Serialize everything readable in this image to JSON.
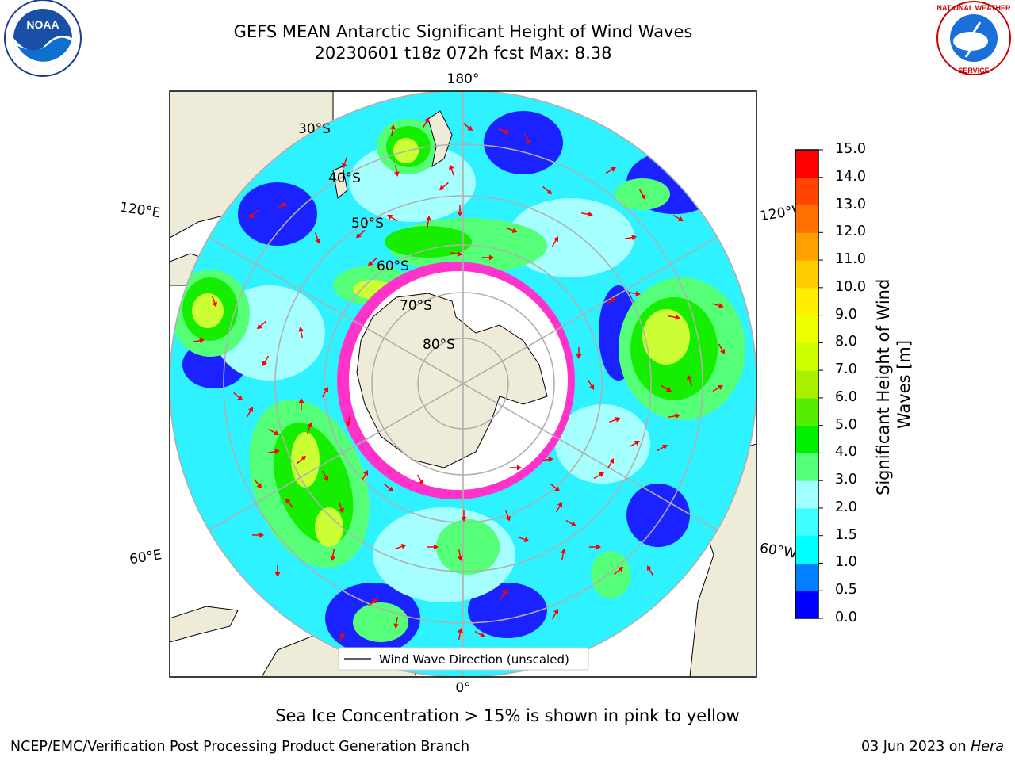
{
  "title": {
    "line1": "GEFS MEAN Antarctic Significant Height of Wind Waves",
    "line2": "20230601 t18z 072h fcst   Max: 8.38"
  },
  "logos": {
    "left": "NOAA",
    "right": "NATIONAL WEATHER SERVICE"
  },
  "map": {
    "projection": "south-polar-stereographic",
    "longitude_labels": {
      "top": "180°",
      "bottom": "0°",
      "left_upper": "120°E",
      "left_lower": "60°E",
      "right_upper": "120°W",
      "right_lower": "60°W"
    },
    "latitude_labels": [
      "30°S",
      "40°S",
      "50°S",
      "60°S",
      "70°S",
      "80°S"
    ],
    "legend": "Wind Wave Direction (unscaled)",
    "arrow_color": "#ff0000",
    "sea_ice_color": "#ff33cc",
    "land_color": "#efebd9"
  },
  "colorbar": {
    "label": "Significant Height of Wind Waves [m]",
    "ticks": [
      "0.0",
      "0.5",
      "1.0",
      "1.5",
      "2.0",
      "3.0",
      "4.0",
      "5.0",
      "6.0",
      "7.0",
      "8.0",
      "9.0",
      "10.0",
      "11.0",
      "12.0",
      "13.0",
      "14.0",
      "15.0"
    ],
    "colors": [
      "#0000ff",
      "#0080ff",
      "#00ffff",
      "#40ffff",
      "#a0ffff",
      "#55ff77",
      "#00ee00",
      "#55ee00",
      "#aaee00",
      "#ccff00",
      "#eeff00",
      "#ffee00",
      "#ffcc00",
      "#ffa000",
      "#ff7000",
      "#ff4400",
      "#ff0000"
    ]
  },
  "note": "Sea Ice Concentration > 15% is shown in pink to yellow",
  "footer": {
    "left": "NCEP/EMC/Verification Post Processing Product Generation Branch",
    "right_date": "03 Jun 2023 on ",
    "right_host": "Hera"
  }
}
